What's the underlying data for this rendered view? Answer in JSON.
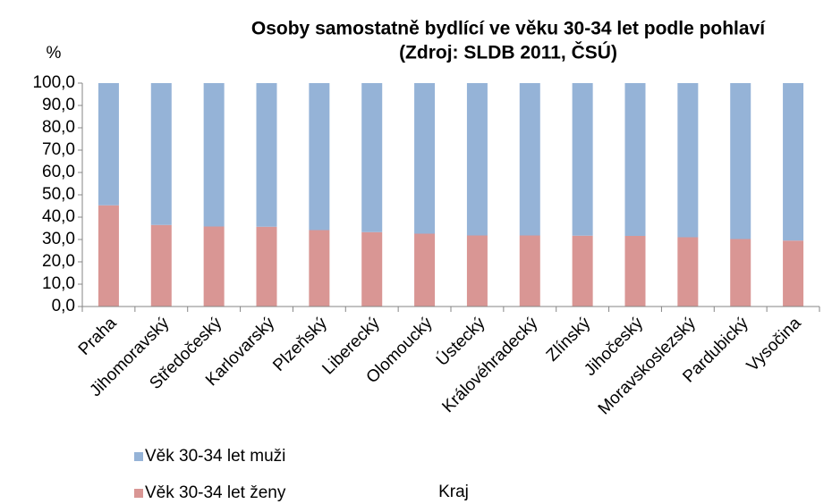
{
  "chart_data": {
    "type": "stacked_bar",
    "title": "Osoby samostatně  bydlící ve věku  30-34 let podle pohlaví",
    "subtitle": "(Zdroj: SLDB 2011, ČSÚ)",
    "y_label": "%",
    "x_label": "Kraj",
    "categories": [
      "Praha",
      "Jihomoravský",
      "Středočeský",
      "Karlovarský",
      "Plzeňský",
      "Liberecký",
      "Olomoucký",
      "Ústecký",
      "Královéhradecký",
      "Zlínský",
      "Jihočeský",
      "Moravskoslezský",
      "Pardubický",
      "Vysočina"
    ],
    "series": [
      {
        "name": "Věk 30-34 let ženy",
        "color": "#d99694",
        "values": [
          45.3,
          36.5,
          35.8,
          35.7,
          34.2,
          33.3,
          32.6,
          31.8,
          31.8,
          31.7,
          31.6,
          31.0,
          30.2,
          29.5
        ]
      },
      {
        "name": "Věk 30-34 let muži",
        "color": "#95b3d7",
        "values": [
          54.7,
          63.5,
          64.2,
          64.3,
          65.8,
          66.7,
          67.4,
          68.2,
          68.2,
          68.3,
          68.4,
          69.0,
          69.8,
          70.5
        ]
      }
    ],
    "ylim": [
      0,
      100
    ],
    "yticks": [
      {
        "value": 0,
        "label": "0,0"
      },
      {
        "value": 10,
        "label": "10,0"
      },
      {
        "value": 20,
        "label": "20,0"
      },
      {
        "value": 30,
        "label": "30,0"
      },
      {
        "value": 40,
        "label": "40,0"
      },
      {
        "value": 50,
        "label": "50,0"
      },
      {
        "value": 60,
        "label": "60,0"
      },
      {
        "value": 70,
        "label": "70,0"
      },
      {
        "value": 80,
        "label": "80,0"
      },
      {
        "value": 90,
        "label": "90,0"
      },
      {
        "value": 100,
        "label": "100,0"
      }
    ],
    "grid": false,
    "legend": "bottom-left"
  }
}
